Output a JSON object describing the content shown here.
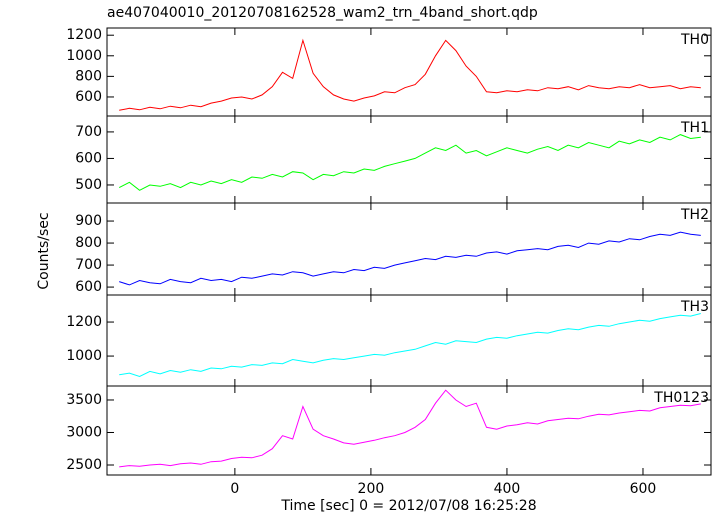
{
  "chart_data": {
    "type": "line",
    "title": "ae407040010_20120708162528_wam2_trn_4band_short.qdp",
    "xlabel": "Time [sec] 0 = 2012/07/08 16:25:28",
    "ylabel": "Counts/sec",
    "xlim": [
      -188,
      700
    ],
    "xticks": [
      0,
      200,
      400,
      600
    ],
    "x": [
      -170,
      -155,
      -140,
      -125,
      -110,
      -95,
      -80,
      -65,
      -50,
      -35,
      -20,
      -5,
      10,
      25,
      40,
      55,
      70,
      85,
      100,
      115,
      130,
      145,
      160,
      175,
      190,
      205,
      220,
      235,
      250,
      265,
      280,
      295,
      310,
      325,
      340,
      355,
      370,
      385,
      400,
      415,
      430,
      445,
      460,
      475,
      490,
      505,
      520,
      535,
      550,
      565,
      580,
      595,
      610,
      625,
      640,
      655,
      670,
      685
    ],
    "series": [
      {
        "name": "TH0",
        "color": "#ff0000",
        "ylim": [
          415,
          1270
        ],
        "yticks": [
          600,
          800,
          1000,
          1200
        ],
        "values": [
          470,
          490,
          475,
          500,
          485,
          510,
          495,
          520,
          505,
          540,
          560,
          590,
          600,
          580,
          620,
          700,
          840,
          780,
          1150,
          830,
          700,
          620,
          580,
          560,
          590,
          610,
          650,
          640,
          690,
          720,
          820,
          1000,
          1150,
          1050,
          900,
          800,
          650,
          640,
          660,
          650,
          670,
          660,
          690,
          680,
          700,
          670,
          710,
          690,
          680,
          700,
          690,
          720,
          690,
          700,
          710,
          680,
          700,
          690
        ]
      },
      {
        "name": "TH1",
        "color": "#00ff00",
        "ylim": [
          432,
          760
        ],
        "yticks": [
          500,
          600,
          700
        ],
        "values": [
          490,
          510,
          480,
          500,
          495,
          505,
          490,
          510,
          500,
          515,
          505,
          520,
          510,
          530,
          525,
          540,
          530,
          550,
          545,
          520,
          540,
          535,
          550,
          545,
          560,
          555,
          570,
          580,
          590,
          600,
          620,
          640,
          630,
          650,
          620,
          630,
          610,
          625,
          640,
          630,
          620,
          635,
          645,
          630,
          650,
          640,
          660,
          650,
          640,
          665,
          655,
          670,
          660,
          680,
          670,
          690,
          675,
          680
        ]
      },
      {
        "name": "TH2",
        "color": "#0000ff",
        "ylim": [
          564,
          982
        ],
        "yticks": [
          600,
          700,
          800,
          900
        ],
        "values": [
          625,
          610,
          630,
          620,
          615,
          635,
          625,
          620,
          640,
          630,
          635,
          625,
          645,
          640,
          650,
          660,
          655,
          670,
          665,
          650,
          660,
          670,
          665,
          680,
          675,
          690,
          685,
          700,
          710,
          720,
          730,
          725,
          740,
          735,
          745,
          740,
          755,
          760,
          750,
          765,
          770,
          775,
          770,
          785,
          790,
          780,
          800,
          795,
          810,
          805,
          820,
          815,
          830,
          840,
          835,
          850,
          840,
          835
        ]
      },
      {
        "name": "TH3",
        "color": "#00ffff",
        "ylim": [
          824,
          1359
        ],
        "yticks": [
          1000,
          1200
        ],
        "values": [
          890,
          900,
          880,
          910,
          895,
          915,
          905,
          920,
          910,
          930,
          925,
          940,
          935,
          950,
          945,
          960,
          955,
          980,
          970,
          960,
          975,
          985,
          980,
          990,
          1000,
          1010,
          1005,
          1020,
          1030,
          1040,
          1060,
          1080,
          1070,
          1090,
          1085,
          1080,
          1100,
          1110,
          1105,
          1120,
          1130,
          1140,
          1135,
          1150,
          1160,
          1155,
          1170,
          1180,
          1175,
          1190,
          1200,
          1210,
          1205,
          1220,
          1230,
          1240,
          1235,
          1250
        ]
      },
      {
        "name": "TH0123",
        "color": "#ff00ff",
        "ylim": [
          2346,
          3715
        ],
        "yticks": [
          2500,
          3000,
          3500
        ],
        "values": [
          2470,
          2490,
          2480,
          2500,
          2510,
          2490,
          2520,
          2530,
          2510,
          2550,
          2560,
          2600,
          2620,
          2610,
          2650,
          2750,
          2950,
          2900,
          3400,
          3050,
          2950,
          2900,
          2840,
          2820,
          2850,
          2880,
          2920,
          2950,
          3000,
          3080,
          3200,
          3450,
          3650,
          3500,
          3400,
          3450,
          3080,
          3050,
          3100,
          3120,
          3150,
          3130,
          3180,
          3200,
          3220,
          3210,
          3250,
          3280,
          3270,
          3300,
          3320,
          3340,
          3330,
          3380,
          3400,
          3420,
          3410,
          3440
        ]
      }
    ]
  }
}
